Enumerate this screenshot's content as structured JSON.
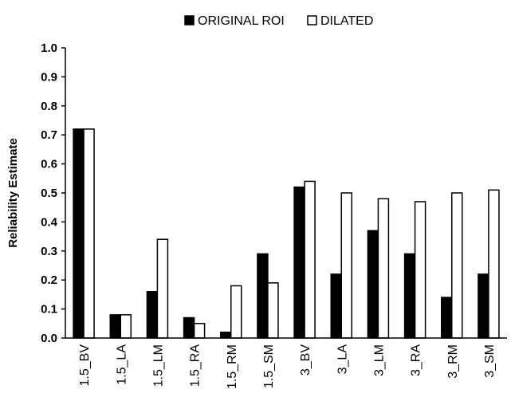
{
  "chart_data": {
    "type": "bar",
    "title": "",
    "xlabel": "",
    "ylabel": "Reliability Estimate",
    "ylim": [
      0,
      1.0
    ],
    "yticks": [
      "0.0",
      "0.1",
      "0.2",
      "0.3",
      "0.4",
      "0.5",
      "0.6",
      "0.7",
      "0.8",
      "0.9",
      "1.0"
    ],
    "categories": [
      "1.5_BV",
      "1.5_LA",
      "1.5_LM",
      "1.5_RA",
      "1.5_RM",
      "1.5_SM",
      "3_BV",
      "3_LA",
      "3_LM",
      "3_RA",
      "3_RM",
      "3_SM"
    ],
    "series": [
      {
        "name": "ORIGINAL ROI",
        "color": "#000000",
        "values": [
          0.72,
          0.08,
          0.16,
          0.07,
          0.02,
          0.29,
          0.52,
          0.22,
          0.37,
          0.29,
          0.14,
          0.22
        ]
      },
      {
        "name": "DILATED",
        "color": "#ffffff",
        "values": [
          0.72,
          0.08,
          0.34,
          0.05,
          0.18,
          0.19,
          0.54,
          0.5,
          0.48,
          0.47,
          0.5,
          0.51
        ]
      }
    ],
    "legend_position": "top-center",
    "grid": false
  }
}
